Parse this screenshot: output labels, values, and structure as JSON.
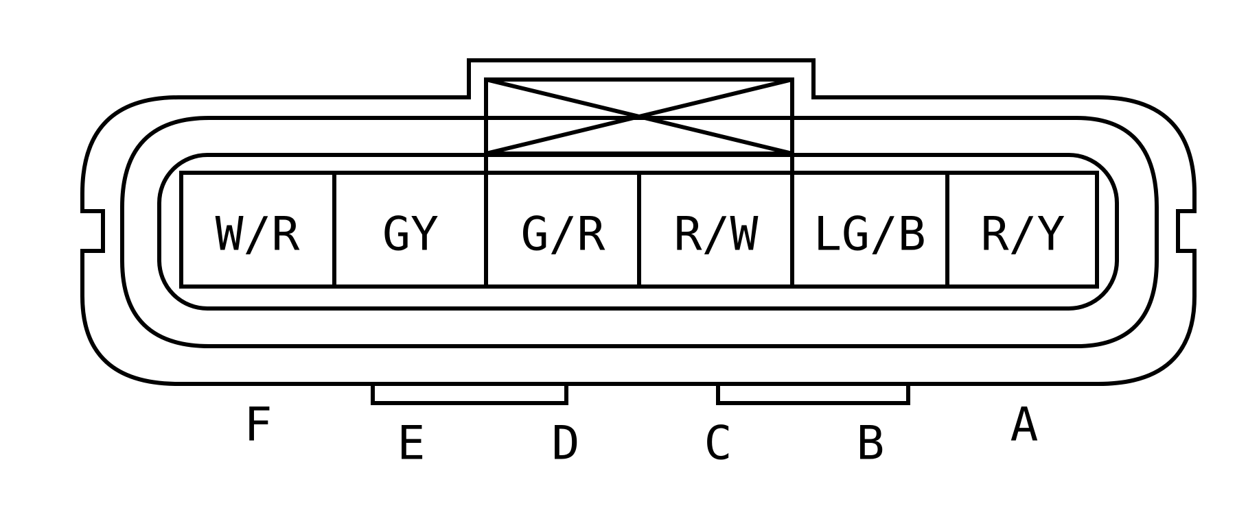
{
  "connector": {
    "cavities": [
      {
        "pin": "F",
        "wire": "W/R"
      },
      {
        "pin": "E",
        "wire": "GY"
      },
      {
        "pin": "D",
        "wire": "G/R"
      },
      {
        "pin": "C",
        "wire": "R/W"
      },
      {
        "pin": "B",
        "wire": "LG/B"
      },
      {
        "pin": "A",
        "wire": "R/Y"
      }
    ]
  },
  "colors": {
    "line": "#000000",
    "background": "#ffffff"
  }
}
